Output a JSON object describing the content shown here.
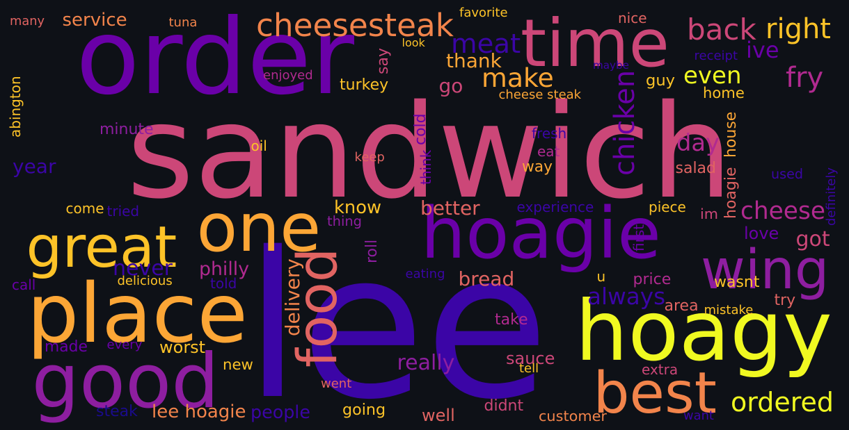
{
  "palette": {
    "background": "#0e1117",
    "dark_indigo": "#1a0b8c",
    "indigo": "#3b05a6",
    "purple": "#6a00a8",
    "violet": "#8e1ea0",
    "magenta": "#b12a90",
    "pink": "#cc4778",
    "coral": "#e16462",
    "orange": "#f2844b",
    "light_orange": "#fca636",
    "yellow": "#f0f921",
    "gold": "#fdc328"
  },
  "words": [
    {
      "text": "sandwich",
      "color": "#cc4778"
    },
    {
      "text": "lee",
      "color": "#3b05a6"
    },
    {
      "text": "order",
      "color": "#6a00a8"
    },
    {
      "text": "time",
      "color": "#cc4778"
    },
    {
      "text": "hoagie",
      "color": "#6a00a8"
    },
    {
      "text": "hoagy",
      "color": "#f0f921"
    },
    {
      "text": "place",
      "color": "#fca636"
    },
    {
      "text": "one",
      "color": "#fca636"
    },
    {
      "text": "great",
      "color": "#fdc328"
    },
    {
      "text": "good",
      "color": "#8e1ea0"
    },
    {
      "text": "wing",
      "color": "#8e1ea0"
    },
    {
      "text": "food",
      "color": "#e16462"
    },
    {
      "text": "best",
      "color": "#f2844b"
    },
    {
      "text": "cheesesteak",
      "color": "#f2844b"
    },
    {
      "text": "meat",
      "color": "#3b05a6"
    },
    {
      "text": "back",
      "color": "#cc4778"
    },
    {
      "text": "right",
      "color": "#fdc328"
    },
    {
      "text": "ive",
      "color": "#6a00a8"
    },
    {
      "text": "make",
      "color": "#fca636"
    },
    {
      "text": "fry",
      "color": "#b12a90"
    },
    {
      "text": "even",
      "color": "#f0f921"
    },
    {
      "text": "thank",
      "color": "#fca636"
    },
    {
      "text": "go",
      "color": "#cc4778"
    },
    {
      "text": "chicken",
      "color": "#6a00a8"
    },
    {
      "text": "day",
      "color": "#b12a90"
    },
    {
      "text": "cheese",
      "color": "#b12a90"
    },
    {
      "text": "got",
      "color": "#cc4778"
    },
    {
      "text": "ordered",
      "color": "#f0f921"
    },
    {
      "text": "always",
      "color": "#3b05a6"
    },
    {
      "text": "know",
      "color": "#fdc328"
    },
    {
      "text": "better",
      "color": "#e16462"
    },
    {
      "text": "never",
      "color": "#3b05a6"
    },
    {
      "text": "philly",
      "color": "#b12a90"
    },
    {
      "text": "bread",
      "color": "#e16462"
    },
    {
      "text": "really",
      "color": "#8e1ea0"
    },
    {
      "text": "sauce",
      "color": "#cc4778"
    },
    {
      "text": "delivery",
      "color": "#f2844b"
    },
    {
      "text": "service",
      "color": "#f2844b"
    },
    {
      "text": "many",
      "color": "#e16462"
    },
    {
      "text": "tuna",
      "color": "#f2844b"
    },
    {
      "text": "favorite",
      "color": "#fdc328"
    },
    {
      "text": "nice",
      "color": "#e16462"
    },
    {
      "text": "receipt",
      "color": "#3b05a6"
    },
    {
      "text": "maybe",
      "color": "#3b05a6"
    },
    {
      "text": "look",
      "color": "#fdc328"
    },
    {
      "text": "say",
      "color": "#cc4778"
    },
    {
      "text": "enjoyed",
      "color": "#b12a90"
    },
    {
      "text": "turkey",
      "color": "#fdc328"
    },
    {
      "text": "cheese steak",
      "color": "#fca636"
    },
    {
      "text": "guy",
      "color": "#fdc328"
    },
    {
      "text": "home",
      "color": "#fdc328"
    },
    {
      "text": "abington",
      "color": "#fdc328"
    },
    {
      "text": "minute",
      "color": "#8e1ea0"
    },
    {
      "text": "cold",
      "color": "#6a00a8"
    },
    {
      "text": "fresh",
      "color": "#3b05a6"
    },
    {
      "text": "oil",
      "color": "#fdc328"
    },
    {
      "text": "eat",
      "color": "#b12a90"
    },
    {
      "text": "keep",
      "color": "#e16462"
    },
    {
      "text": "think",
      "color": "#6a00a8"
    },
    {
      "text": "way",
      "color": "#fca636"
    },
    {
      "text": "salad",
      "color": "#e16462"
    },
    {
      "text": "house",
      "color": "#fca636"
    },
    {
      "text": "hoagie",
      "color": "#e16462"
    },
    {
      "text": "used",
      "color": "#3b05a6"
    },
    {
      "text": "definitely",
      "color": "#3b05a6"
    },
    {
      "text": "year",
      "color": "#3b05a6"
    },
    {
      "text": "come",
      "color": "#fdc328"
    },
    {
      "text": "tried",
      "color": "#3b05a6"
    },
    {
      "text": "thing",
      "color": "#8e1ea0"
    },
    {
      "text": "roll",
      "color": "#8e1ea0"
    },
    {
      "text": "experience",
      "color": "#3b05a6"
    },
    {
      "text": "piece",
      "color": "#fdc328"
    },
    {
      "text": "im",
      "color": "#cc4778"
    },
    {
      "text": "love",
      "color": "#6a00a8"
    },
    {
      "text": "first",
      "color": "#6a00a8"
    },
    {
      "text": "call",
      "color": "#6a00a8"
    },
    {
      "text": "delicious",
      "color": "#fdc328"
    },
    {
      "text": "told",
      "color": "#3b05a6"
    },
    {
      "text": "eating",
      "color": "#3b05a6"
    },
    {
      "text": "u",
      "color": "#fdc328"
    },
    {
      "text": "price",
      "color": "#b12a90"
    },
    {
      "text": "wasnt",
      "color": "#fdc328"
    },
    {
      "text": "try",
      "color": "#e16462"
    },
    {
      "text": "area",
      "color": "#e16462"
    },
    {
      "text": "mistake",
      "color": "#fdc328"
    },
    {
      "text": "take",
      "color": "#b12a90"
    },
    {
      "text": "made",
      "color": "#6a00a8"
    },
    {
      "text": "every",
      "color": "#6a00a8"
    },
    {
      "text": "worst",
      "color": "#fdc328"
    },
    {
      "text": "new",
      "color": "#fdc328"
    },
    {
      "text": "extra",
      "color": "#cc4778"
    },
    {
      "text": "tell",
      "color": "#fdc328"
    },
    {
      "text": "went",
      "color": "#e16462"
    },
    {
      "text": "steak",
      "color": "#1a0b8c"
    },
    {
      "text": "lee hoagie",
      "color": "#f2844b"
    },
    {
      "text": "people",
      "color": "#3b05a6"
    },
    {
      "text": "going",
      "color": "#fdc328"
    },
    {
      "text": "well",
      "color": "#e16462"
    },
    {
      "text": "didnt",
      "color": "#cc4778"
    },
    {
      "text": "customer",
      "color": "#f2844b"
    },
    {
      "text": "want",
      "color": "#3b05a6"
    }
  ]
}
